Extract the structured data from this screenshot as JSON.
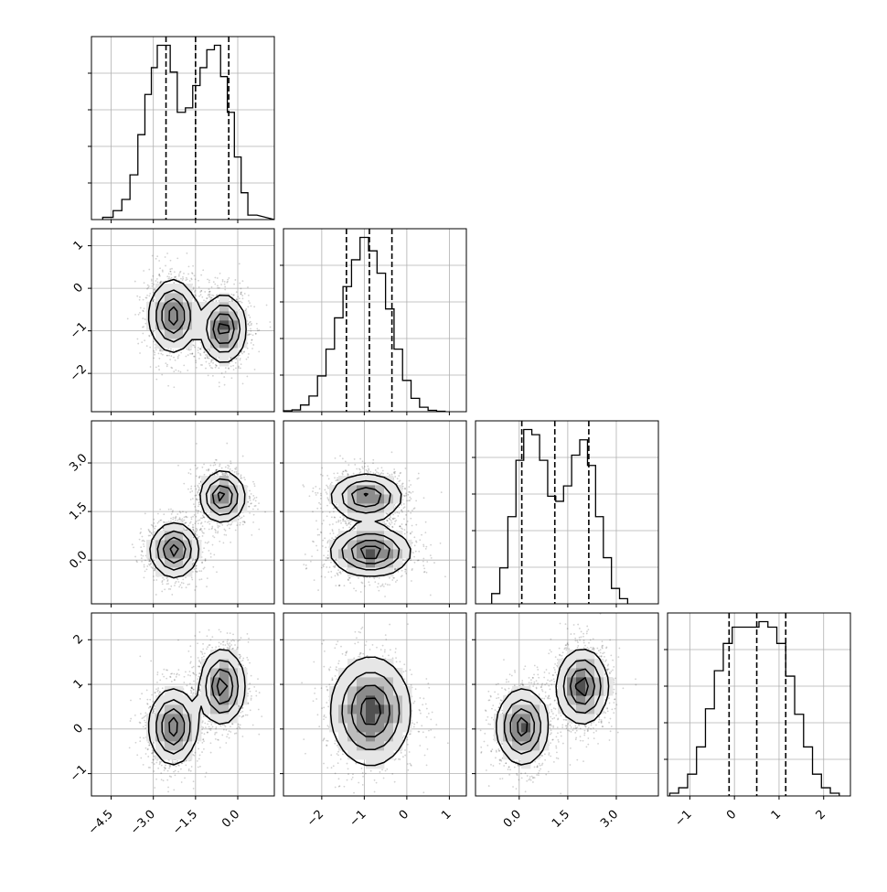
{
  "chart_data": {
    "type": "corner",
    "dimensions": 4,
    "grid": true,
    "dashed_quantiles": [
      0.16,
      0.5,
      0.84
    ],
    "variables": [
      {
        "axis_range": [
          -5.2,
          1.3
        ],
        "tick_labels": [
          [
            "-4.5",
            -4.5
          ],
          [
            "-3.0",
            -3.0
          ],
          [
            "-1.5",
            -1.5
          ],
          [
            "0.0",
            0.0
          ]
        ],
        "hist_bins": [
          -4.8,
          -4.43,
          -4.12,
          -3.83,
          -3.55,
          -3.3,
          -3.07,
          -2.86,
          -2.65,
          -2.4,
          -2.15,
          -1.86,
          -1.6,
          -1.34,
          -1.1,
          -0.83,
          -0.61,
          -0.37,
          -0.12,
          0.12,
          0.36,
          0.68,
          1.3
        ],
        "hist_counts": [
          0.5,
          2,
          4.5,
          10,
          19,
          28,
          34,
          39,
          39,
          33,
          24,
          25,
          30,
          34,
          38,
          39,
          32,
          24,
          14,
          6,
          1
        ],
        "quantile_lines": [
          -2.55,
          -1.5,
          -0.32
        ]
      },
      {
        "axis_range": [
          -2.9,
          1.4
        ],
        "tick_labels": [
          [
            "-2",
            -2
          ],
          [
            "-1",
            -1
          ],
          [
            "0",
            0
          ],
          [
            "1",
            1
          ]
        ],
        "hist_bins": [
          -2.9,
          -2.7,
          -2.5,
          -2.3,
          -2.1,
          -1.9,
          -1.7,
          -1.5,
          -1.3,
          -1.1,
          -0.9,
          -0.7,
          -0.5,
          -0.3,
          -0.1,
          0.1,
          0.3,
          0.5,
          0.7,
          0.9
        ],
        "hist_counts": [
          0.2,
          0.4,
          1.5,
          3.5,
          8,
          14,
          21,
          28,
          34,
          39,
          36,
          31,
          23,
          14,
          7,
          3,
          1,
          0.3,
          0.1
        ],
        "quantile_lines": [
          -1.42,
          -0.88,
          -0.35
        ]
      },
      {
        "axis_range": [
          -1.35,
          4.3
        ],
        "tick_labels": [
          [
            "0.0",
            0.0
          ],
          [
            "1.5",
            1.5
          ],
          [
            "3.0",
            3.0
          ]
        ],
        "hist_bins": [
          -0.85,
          -0.6,
          -0.35,
          -0.1,
          0.14,
          0.39,
          0.63,
          0.88,
          1.13,
          1.37,
          1.62,
          1.87,
          2.11,
          2.36,
          2.6,
          2.85,
          3.1,
          3.35
        ],
        "hist_counts": [
          2,
          7,
          17,
          28,
          34,
          33,
          28,
          21,
          20,
          23,
          29,
          32,
          27,
          17,
          9,
          3,
          1
        ],
        "quantile_lines": [
          0.08,
          1.1,
          2.15
        ]
      },
      {
        "axis_range": [
          -1.5,
          2.6
        ],
        "tick_labels": [
          [
            "-1",
            -1
          ],
          [
            "0",
            0
          ],
          [
            "1",
            1
          ],
          [
            "2",
            2
          ]
        ],
        "hist_bins": [
          -1.45,
          -1.25,
          -1.05,
          -0.85,
          -0.65,
          -0.45,
          -0.25,
          -0.05,
          0.15,
          0.35,
          0.55,
          0.75,
          0.95,
          1.15,
          1.35,
          1.55,
          1.75,
          1.95,
          2.15,
          2.35
        ],
        "hist_counts": [
          0.5,
          1.5,
          4,
          9,
          16,
          23,
          28,
          31,
          31,
          31,
          32,
          31,
          28,
          22,
          15,
          9,
          4,
          1.5,
          0.5
        ],
        "quantile_lines": [
          -0.12,
          0.5,
          1.15
        ]
      }
    ],
    "row_tick_labels": [
      [],
      [
        [
          "1",
          1
        ],
        [
          "0",
          0
        ],
        [
          "-1",
          -1
        ],
        [
          "-2",
          -2
        ]
      ],
      [
        [
          "3.0",
          3.0
        ],
        [
          "1.5",
          1.5
        ],
        [
          "0.0",
          0.0
        ]
      ],
      [
        [
          "2",
          2
        ],
        [
          "1",
          1
        ],
        [
          "0",
          0
        ],
        [
          "-1",
          -1
        ]
      ]
    ],
    "panels_2d": [
      {
        "row": 1,
        "col": 0,
        "modes": [
          {
            "mean": [
              -2.3,
              -0.65
            ],
            "sd": [
              0.45,
              0.45
            ],
            "weight": 1.0
          },
          {
            "mean": [
              -0.5,
              -0.95
            ],
            "sd": [
              0.42,
              0.42
            ],
            "weight": 1.0
          }
        ]
      },
      {
        "row": 2,
        "col": 0,
        "modes": [
          {
            "mean": [
              -2.25,
              0.3
            ],
            "sd": [
              0.45,
              0.45
            ],
            "weight": 1.0
          },
          {
            "mean": [
              -0.55,
              1.95
            ],
            "sd": [
              0.42,
              0.42
            ],
            "weight": 1.0
          }
        ]
      },
      {
        "row": 2,
        "col": 1,
        "modes": [
          {
            "mean": [
              -0.85,
              0.25
            ],
            "sd": [
              0.5,
              0.4
            ],
            "weight": 1.0
          },
          {
            "mean": [
              -0.95,
              1.95
            ],
            "sd": [
              0.45,
              0.38
            ],
            "weight": 0.9
          }
        ]
      },
      {
        "row": 3,
        "col": 0,
        "modes": [
          {
            "mean": [
              -2.3,
              0.05
            ],
            "sd": [
              0.45,
              0.45
            ],
            "weight": 1.0
          },
          {
            "mean": [
              -0.55,
              0.95
            ],
            "sd": [
              0.42,
              0.45
            ],
            "weight": 1.0
          }
        ]
      },
      {
        "row": 3,
        "col": 1,
        "modes": [
          {
            "mean": [
              -0.85,
              0.4
            ],
            "sd": [
              0.5,
              0.65
            ],
            "weight": 1.0
          }
        ]
      },
      {
        "row": 3,
        "col": 2,
        "modes": [
          {
            "mean": [
              0.1,
              0.05
            ],
            "sd": [
              0.42,
              0.45
            ],
            "weight": 1.0
          },
          {
            "mean": [
              1.95,
              0.95
            ],
            "sd": [
              0.42,
              0.45
            ],
            "weight": 1.0
          }
        ]
      }
    ]
  }
}
